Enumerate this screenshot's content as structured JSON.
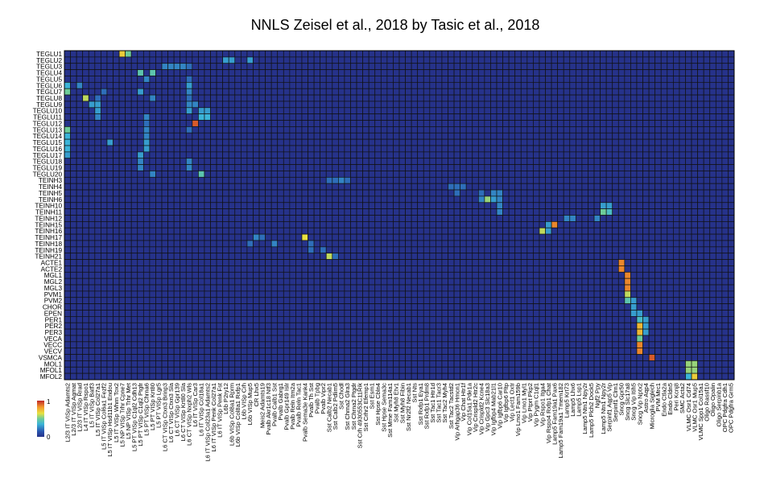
{
  "chart_data": {
    "type": "heatmap",
    "title": "NNLS Zeisel et al., 2018 by Tasic et al., 2018",
    "rows": [
      "TEGLU1",
      "TEGLU2",
      "TEGLU3",
      "TEGLU4",
      "TEGLU5",
      "TEGLU6",
      "TEGLU7",
      "TEGLU8",
      "TEGLU9",
      "TEGLU10",
      "TEGLU11",
      "TEGLU12",
      "TEGLU13",
      "TEGLU14",
      "TEGLU15",
      "TEGLU16",
      "TEGLU17",
      "TEGLU18",
      "TEGLU19",
      "TEGLU20",
      "TEINH3",
      "TEINH4",
      "TEINH5",
      "TEINH6",
      "TEINH10",
      "TEINH11",
      "TEINH12",
      "TEINH15",
      "TEINH16",
      "TEINH17",
      "TEINH18",
      "TEINH19",
      "TEINH21",
      "ACTE1",
      "ACTE2",
      "MGL1",
      "MGL2",
      "MGL3",
      "PVM1",
      "PVM2",
      "CHOR",
      "EPEN",
      "PER1",
      "PER2",
      "PER3",
      "VECA",
      "VECC",
      "VECV",
      "VSMCA",
      "MOL1",
      "MFOL1",
      "MFOL2"
    ],
    "columns": [
      "L2/3 IT VISp Adamts2",
      "L2/3 IT VISp Agmat",
      "L2/3 IT VISp Rrad",
      "L4 IT VISp Rspo1",
      "L5 IT VISp Batf3",
      "L5 IT VISp Col27a1",
      "L5 IT VISp Col6a1 Fezf2",
      "L5 IT VISp Hsd11b1 Endou",
      "L5 IT VISp Whrn Tox2",
      "L5 NP VISp Trhr Cpne7",
      "L5 NP VISp Trhr Met",
      "L5 PT VISp C1ql2 Cdh13",
      "L5 PT VISp C1ql2 Ptgfr",
      "L5 PT VISp Chrna6",
      "L5 PT VISp Krt80",
      "L5 PT VISp Lgr5",
      "L6 CT VISp Ctxn3 Brinp3",
      "L6 CT VISp Ctxn3 Sla",
      "L6 CT VISp Gpr139",
      "L6 CT VISp Krt80 Sla",
      "L6 CT VISp Nxph2 Wls",
      "L6 IT VISp Car3",
      "L6 IT VISp Col18a1",
      "L6 IT VISp Col23a1 Adamts2",
      "L6 IT VISp Penk Col27a1",
      "L6 IT VISp Penk Fst",
      "L6b P2ry12",
      "L6b VISp Col8a1 Rprm",
      "L6b VISp Col8a1 Rxfp1",
      "L6b VISp Crh",
      "L6b VISp Mup5",
      "CR Lhx5",
      "Meis2 Adamts19",
      "Pvalb Akr1c18 Ntf3",
      "Pvalb Calb1 Sst",
      "Pvalb Gabrg1",
      "Pvalb Gpr149 Islr",
      "Pvalb Reln Itm2a",
      "Pvalb Reln Tac1",
      "Pvalb Sema3e Kank4",
      "Pvalb Th Sst",
      "Pvalb Tpbg",
      "Pvalb Vipr2",
      "Sst Calb2 Necab1",
      "Sst Calb2 Pdlim5",
      "Sst Chodl",
      "Sst Chrna2 Glra3",
      "Sst Chrna2 Ptgdr",
      "Sst Crh 4930553C11Rik",
      "Sst Crhr2 Efemp1",
      "Sst Esm1",
      "Sst Hpse Cbln4",
      "Sst Hpse Sema3c",
      "Sst Mme Fam114a1",
      "Sst Myh8 Etv1",
      "Sst Myh8 Fibin",
      "Sst Nr2f2 Necab1",
      "Sst Nts",
      "Sst Rxfp1 Eya1",
      "Sst Rxfp1 Prdm8",
      "Sst Tac1 Htr1d",
      "Sst Tac1 Tacr3",
      "Sst Tac2 Myh4",
      "Sst Tac2 Tacstd2",
      "Vip Arhgap36 Hmcn1",
      "Vip Chat Htr1f",
      "Vip Col15a1 Pde1a",
      "Vip Crispld2 Htr2c",
      "Vip Crispld2 Kcne4",
      "Vip Gpc3 Slc18a3",
      "Vip Igfbp4 Mab21l1",
      "Vip Igfbp6 Car10",
      "Vip Igfbp6 Pltp",
      "Vip Lect1 Oxtr",
      "Vip Lmo1 Fam159b",
      "Vip Lmo1 Myl1",
      "Vip Ptprt Pkp2",
      "Vip Pygm C1ql1",
      "Vip Rspo1 Itga4",
      "Vip Rspo4 Rxfp1 Chat",
      "Lamp5 Fam19a1 Pax6",
      "Lamp5 Fam19a1 Tmem182",
      "Lamp5 Krt73",
      "Lamp5 Lhx6",
      "Lamp5 Lsp1",
      "Lamp5 Ntn1 Npy2r",
      "Lamp5 Plch2 Dock5",
      "Ngf2 Ppy",
      "Lamp5 Ntn1 Npy2r",
      "Serpinf1 Aqp5 Vip",
      "Serpinf1 Clrn1",
      "Sncg Gpr50",
      "Sncg Slc17a8",
      "Sncg Vip Itih5",
      "Sncg Vip Nptx2",
      "Astro Aqp4",
      "Microglia Siglech",
      "PVM Mrc1",
      "Endo Ctla2a",
      "Endo Cldn5",
      "Peri Kcnj8",
      "SMC Acta2",
      "VLMC Osr1 Cd74",
      "VLMC Osr1 Mup5",
      "VLMC Spp1 Col15a1",
      "Oligo Rassf10",
      "Oligo Opalin",
      "Oligo Serpinb1a",
      "OPC Pdgfra Cdh1",
      "OPC Pdgfra Grm5"
    ],
    "colorbar": {
      "min_label": "0",
      "max_label": "1",
      "min": 0,
      "max": 1
    },
    "colors": {
      "low": "#26328a",
      "mid": "#6ecc99",
      "high": "#c0282a",
      "grid": "#111111",
      "background": "#ffffff"
    },
    "cells": [
      [
        0,
        9,
        0.7
      ],
      [
        0,
        10,
        0.5
      ],
      [
        1,
        26,
        0.3
      ],
      [
        1,
        27,
        0.3
      ],
      [
        1,
        30,
        0.3
      ],
      [
        2,
        16,
        0.25
      ],
      [
        2,
        17,
        0.25
      ],
      [
        2,
        18,
        0.25
      ],
      [
        2,
        19,
        0.25
      ],
      [
        2,
        20,
        0.2
      ],
      [
        3,
        12,
        0.45
      ],
      [
        3,
        14,
        0.45
      ],
      [
        4,
        13,
        0.25
      ],
      [
        4,
        20,
        0.2
      ],
      [
        5,
        0,
        0.35
      ],
      [
        5,
        2,
        0.25
      ],
      [
        5,
        20,
        0.3
      ],
      [
        6,
        0,
        0.5
      ],
      [
        6,
        6,
        0.2
      ],
      [
        6,
        12,
        0.3
      ],
      [
        6,
        20,
        0.25
      ],
      [
        7,
        3,
        0.6
      ],
      [
        7,
        5,
        0.2
      ],
      [
        7,
        14,
        0.25
      ],
      [
        7,
        20,
        0.2
      ],
      [
        8,
        4,
        0.3
      ],
      [
        8,
        5,
        0.3
      ],
      [
        8,
        20,
        0.25
      ],
      [
        8,
        21,
        0.25
      ],
      [
        9,
        5,
        0.3
      ],
      [
        9,
        20,
        0.3
      ],
      [
        9,
        22,
        0.3
      ],
      [
        9,
        23,
        0.3
      ],
      [
        10,
        5,
        0.25
      ],
      [
        10,
        13,
        0.25
      ],
      [
        10,
        22,
        0.35
      ],
      [
        10,
        23,
        0.35
      ],
      [
        11,
        21,
        0.92
      ],
      [
        11,
        13,
        0.2
      ],
      [
        12,
        0,
        0.5
      ],
      [
        12,
        13,
        0.25
      ],
      [
        12,
        20,
        0.2
      ],
      [
        13,
        0,
        0.35
      ],
      [
        13,
        13,
        0.25
      ],
      [
        14,
        0,
        0.35
      ],
      [
        14,
        7,
        0.3
      ],
      [
        14,
        13,
        0.3
      ],
      [
        15,
        0,
        0.35
      ],
      [
        15,
        13,
        0.3
      ],
      [
        16,
        0,
        0.3
      ],
      [
        16,
        12,
        0.3
      ],
      [
        17,
        12,
        0.25
      ],
      [
        17,
        20,
        0.25
      ],
      [
        18,
        12,
        0.25
      ],
      [
        18,
        20,
        0.25
      ],
      [
        19,
        14,
        0.25
      ],
      [
        19,
        22,
        0.45
      ],
      [
        20,
        43,
        0.2
      ],
      [
        20,
        44,
        0.2
      ],
      [
        20,
        45,
        0.25
      ],
      [
        20,
        46,
        0.2
      ],
      [
        21,
        63,
        0.2
      ],
      [
        21,
        64,
        0.2
      ],
      [
        21,
        65,
        0.2
      ],
      [
        22,
        64,
        0.2
      ],
      [
        22,
        68,
        0.2
      ],
      [
        22,
        70,
        0.25
      ],
      [
        22,
        71,
        0.25
      ],
      [
        23,
        68,
        0.25
      ],
      [
        23,
        69,
        0.55
      ],
      [
        23,
        70,
        0.3
      ],
      [
        23,
        71,
        0.25
      ],
      [
        24,
        71,
        0.25
      ],
      [
        24,
        88,
        0.3
      ],
      [
        24,
        89,
        0.3
      ],
      [
        25,
        71,
        0.25
      ],
      [
        25,
        88,
        0.5
      ],
      [
        25,
        89,
        0.4
      ],
      [
        26,
        82,
        0.25
      ],
      [
        26,
        83,
        0.25
      ],
      [
        26,
        87,
        0.25
      ],
      [
        27,
        79,
        0.3
      ],
      [
        27,
        80,
        0.85
      ],
      [
        28,
        78,
        0.6
      ],
      [
        28,
        79,
        0.3
      ],
      [
        29,
        31,
        0.25
      ],
      [
        29,
        32,
        0.2
      ],
      [
        29,
        39,
        0.65
      ],
      [
        30,
        30,
        0.2
      ],
      [
        30,
        34,
        0.25
      ],
      [
        30,
        40,
        0.2
      ],
      [
        31,
        40,
        0.2
      ],
      [
        31,
        42,
        0.2
      ],
      [
        32,
        43,
        0.6
      ],
      [
        32,
        44,
        0.2
      ],
      [
        33,
        91,
        0.85
      ],
      [
        34,
        91,
        0.85
      ],
      [
        35,
        92,
        0.85
      ],
      [
        36,
        92,
        0.85
      ],
      [
        37,
        92,
        0.85
      ],
      [
        38,
        92,
        0.6
      ],
      [
        39,
        92,
        0.45
      ],
      [
        39,
        93,
        0.3
      ],
      [
        40,
        93,
        0.3
      ],
      [
        41,
        93,
        0.3
      ],
      [
        41,
        94,
        0.3
      ],
      [
        42,
        94,
        0.4
      ],
      [
        42,
        95,
        0.3
      ],
      [
        43,
        94,
        0.75
      ],
      [
        43,
        95,
        0.3
      ],
      [
        44,
        94,
        0.75
      ],
      [
        44,
        95,
        0.3
      ],
      [
        45,
        94,
        0.5
      ],
      [
        46,
        94,
        0.85
      ],
      [
        47,
        94,
        0.85
      ],
      [
        48,
        96,
        0.92
      ],
      [
        49,
        102,
        0.55
      ],
      [
        49,
        103,
        0.55
      ],
      [
        50,
        102,
        0.55
      ],
      [
        50,
        103,
        0.55
      ],
      [
        51,
        103,
        0.7
      ],
      [
        51,
        102,
        0.35
      ]
    ]
  }
}
